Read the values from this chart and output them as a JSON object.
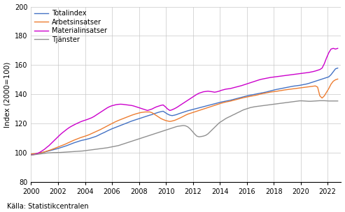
{
  "ylabel": "Index (2000=100)",
  "source": "Källa: Statistikcentralen",
  "xlim": [
    2000.0,
    2023.0
  ],
  "ylim": [
    80,
    200
  ],
  "yticks": [
    80,
    100,
    120,
    140,
    160,
    180,
    200
  ],
  "xticks": [
    2000,
    2002,
    2004,
    2006,
    2008,
    2010,
    2012,
    2014,
    2016,
    2018,
    2020,
    2022
  ],
  "legend_labels": [
    "Totalindex",
    "Arbetsinsatser",
    "Materialinsatser",
    "Tjänster"
  ],
  "line_colors": [
    "#4472c4",
    "#ed7d31",
    "#cc00cc",
    "#909090"
  ],
  "background_color": "#ffffff",
  "grid_color": "#c8c8c8",
  "totalindex": [
    99.0,
    99.2,
    99.4,
    99.6,
    100.0,
    100.3,
    100.6,
    101.0,
    101.4,
    101.8,
    102.2,
    102.6,
    103.0,
    103.5,
    104.0,
    104.5,
    105.0,
    105.6,
    106.2,
    106.8,
    107.3,
    107.8,
    108.3,
    108.7,
    109.0,
    109.4,
    109.8,
    110.3,
    110.8,
    111.3,
    112.0,
    112.8,
    113.5,
    114.2,
    115.0,
    115.7,
    116.4,
    117.0,
    117.6,
    118.2,
    118.8,
    119.4,
    120.0,
    120.6,
    121.2,
    121.8,
    122.3,
    122.8,
    123.3,
    123.8,
    124.3,
    124.8,
    125.3,
    125.8,
    126.2,
    126.8,
    127.3,
    127.8,
    128.2,
    128.5,
    127.5,
    126.5,
    125.8,
    125.5,
    125.8,
    126.2,
    126.8,
    127.3,
    127.8,
    128.3,
    128.8,
    129.2,
    129.6,
    130.0,
    130.4,
    130.8,
    131.2,
    131.6,
    132.0,
    132.4,
    132.8,
    133.2,
    133.6,
    134.0,
    134.4,
    134.8,
    135.1,
    135.4,
    135.7,
    136.0,
    136.4,
    136.8,
    137.2,
    137.6,
    138.0,
    138.4,
    138.8,
    139.2,
    139.5,
    139.8,
    140.1,
    140.4,
    140.7,
    141.0,
    141.3,
    141.6,
    142.0,
    142.4,
    142.8,
    143.2,
    143.5,
    143.8,
    144.1,
    144.4,
    144.7,
    145.0,
    145.3,
    145.6,
    145.8,
    146.0,
    146.2,
    146.5,
    146.8,
    147.1,
    147.5,
    148.0,
    148.5,
    149.0,
    149.5,
    150.0,
    150.5,
    151.0,
    151.5,
    152.0,
    153.5,
    155.5,
    157.5,
    158.0
  ],
  "arbetsinsatser": [
    99.2,
    99.4,
    99.5,
    99.7,
    100.0,
    100.3,
    100.7,
    101.2,
    101.7,
    102.2,
    102.8,
    103.4,
    104.0,
    104.6,
    105.2,
    105.8,
    106.5,
    107.2,
    107.9,
    108.6,
    109.2,
    109.8,
    110.4,
    110.9,
    111.4,
    111.9,
    112.5,
    113.2,
    113.9,
    114.6,
    115.3,
    116.0,
    116.8,
    117.6,
    118.4,
    119.2,
    120.0,
    120.8,
    121.5,
    122.2,
    122.8,
    123.4,
    124.0,
    124.6,
    125.2,
    125.8,
    126.3,
    126.8,
    127.2,
    127.6,
    127.8,
    128.0,
    128.0,
    128.0,
    127.5,
    126.5,
    125.5,
    124.5,
    123.5,
    122.8,
    122.2,
    121.8,
    121.5,
    121.8,
    122.2,
    122.8,
    123.5,
    124.2,
    125.0,
    125.8,
    126.5,
    127.0,
    127.5,
    128.0,
    128.5,
    129.0,
    129.5,
    130.0,
    130.5,
    131.0,
    131.5,
    132.0,
    132.5,
    133.0,
    133.5,
    134.0,
    134.4,
    134.8,
    135.1,
    135.4,
    135.8,
    136.2,
    136.6,
    137.0,
    137.4,
    137.8,
    138.1,
    138.4,
    138.7,
    139.0,
    139.3,
    139.6,
    140.0,
    140.4,
    140.7,
    141.0,
    141.3,
    141.6,
    141.8,
    142.0,
    142.2,
    142.5,
    142.7,
    143.0,
    143.2,
    143.4,
    143.6,
    143.8,
    144.0,
    144.2,
    144.4,
    144.6,
    144.8,
    145.0,
    145.2,
    145.4,
    145.6,
    145.8,
    145.0,
    139.0,
    137.5,
    139.0,
    141.5,
    144.0,
    147.0,
    149.0,
    150.0,
    150.5
  ],
  "materialinsatser": [
    98.5,
    98.8,
    99.2,
    99.8,
    100.5,
    101.5,
    102.5,
    103.8,
    105.0,
    106.5,
    108.0,
    109.5,
    111.0,
    112.5,
    113.8,
    115.0,
    116.2,
    117.3,
    118.2,
    119.0,
    119.8,
    120.5,
    121.2,
    121.8,
    122.3,
    122.8,
    123.4,
    124.0,
    124.8,
    125.8,
    126.8,
    127.8,
    128.8,
    129.8,
    130.8,
    131.6,
    132.2,
    132.6,
    133.0,
    133.2,
    133.3,
    133.2,
    133.0,
    132.8,
    132.6,
    132.4,
    132.0,
    131.5,
    131.0,
    130.5,
    130.0,
    129.5,
    129.0,
    129.5,
    130.0,
    130.8,
    131.5,
    132.0,
    132.5,
    132.8,
    131.5,
    130.0,
    129.0,
    129.5,
    130.2,
    131.0,
    132.0,
    133.0,
    134.0,
    135.0,
    136.0,
    137.0,
    138.0,
    139.0,
    140.0,
    140.8,
    141.3,
    141.8,
    142.0,
    142.2,
    142.0,
    141.8,
    141.5,
    141.8,
    142.2,
    142.8,
    143.2,
    143.6,
    143.8,
    144.0,
    144.4,
    144.8,
    145.2,
    145.6,
    146.0,
    146.5,
    147.0,
    147.5,
    148.0,
    148.5,
    149.0,
    149.5,
    150.0,
    150.4,
    150.7,
    151.0,
    151.3,
    151.6,
    151.8,
    152.0,
    152.2,
    152.4,
    152.6,
    152.8,
    153.0,
    153.2,
    153.4,
    153.6,
    153.8,
    154.0,
    154.2,
    154.4,
    154.6,
    154.8,
    155.0,
    155.3,
    155.6,
    156.0,
    156.5,
    157.0,
    158.0,
    161.0,
    165.0,
    168.5,
    171.0,
    171.5,
    171.0,
    171.5
  ],
  "tjanster": [
    98.5,
    98.7,
    98.9,
    99.1,
    99.3,
    99.5,
    99.7,
    99.9,
    100.0,
    100.1,
    100.2,
    100.2,
    100.3,
    100.3,
    100.4,
    100.5,
    100.6,
    100.7,
    100.8,
    100.9,
    101.0,
    101.1,
    101.2,
    101.3,
    101.5,
    101.7,
    101.9,
    102.1,
    102.3,
    102.5,
    102.7,
    102.9,
    103.1,
    103.3,
    103.5,
    103.8,
    104.1,
    104.4,
    104.7,
    105.0,
    105.5,
    106.0,
    106.5,
    107.0,
    107.5,
    108.0,
    108.5,
    109.0,
    109.5,
    110.0,
    110.5,
    111.0,
    111.5,
    112.0,
    112.5,
    113.0,
    113.5,
    114.0,
    114.5,
    115.0,
    115.5,
    116.0,
    116.5,
    117.0,
    117.5,
    118.0,
    118.3,
    118.5,
    118.7,
    118.5,
    117.8,
    116.5,
    114.8,
    113.0,
    111.5,
    111.0,
    111.2,
    111.5,
    112.0,
    113.0,
    114.5,
    116.0,
    117.5,
    119.0,
    120.5,
    121.5,
    122.5,
    123.5,
    124.3,
    125.0,
    125.8,
    126.5,
    127.3,
    128.0,
    128.8,
    129.5,
    130.0,
    130.5,
    131.0,
    131.3,
    131.6,
    131.8,
    132.0,
    132.2,
    132.4,
    132.6,
    132.8,
    133.0,
    133.2,
    133.4,
    133.6,
    133.8,
    134.0,
    134.2,
    134.4,
    134.6,
    134.8,
    135.0,
    135.2,
    135.4,
    135.6,
    135.6,
    135.5,
    135.4,
    135.3,
    135.3,
    135.4,
    135.5,
    135.6,
    135.7,
    135.7,
    135.7,
    135.6,
    135.5,
    135.5,
    135.5,
    135.5,
    135.5
  ],
  "start_year": 2000.0,
  "end_year": 2022.75
}
